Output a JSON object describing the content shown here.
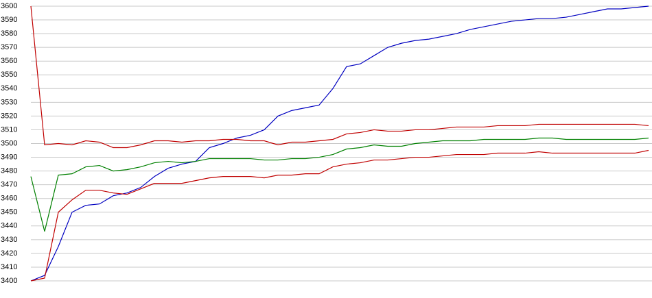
{
  "chart_data": {
    "type": "line",
    "categories": [
      null,
      null,
      null,
      null,
      null,
      null,
      null,
      null,
      null,
      null,
      null,
      null,
      null,
      null,
      null,
      null,
      null,
      null,
      null,
      null,
      null,
      null,
      null,
      null,
      null,
      null,
      null,
      null,
      null,
      null,
      null,
      null,
      null,
      null,
      null,
      null,
      null,
      null,
      null,
      null,
      null,
      null,
      null,
      null,
      null,
      null
    ],
    "series": [
      {
        "color": "#0000c0",
        "values": [
          3400,
          3404,
          3425,
          3450,
          3455,
          3456,
          3462,
          3464,
          3468,
          3476,
          3482,
          3485,
          3487,
          3497,
          3500,
          3504,
          3506,
          3510,
          3520,
          3524,
          3526,
          3528,
          3540,
          3556,
          3558,
          3564,
          3570,
          3573,
          3575,
          3576,
          3578,
          3580,
          3583,
          3585,
          3587,
          3589,
          3590,
          3591,
          3591,
          3592,
          3594,
          3596,
          3598,
          3598,
          3599,
          3600
        ]
      },
      {
        "color": "#c00000",
        "values": [
          3600,
          3499,
          3500,
          3499,
          3502,
          3501,
          3497,
          3497,
          3499,
          3502,
          3502,
          3501,
          3502,
          3502,
          3503,
          3503,
          3502,
          3502,
          3499,
          3501,
          3501,
          3502,
          3503,
          3507,
          3508,
          3510,
          3509,
          3509,
          3510,
          3510,
          3511,
          3512,
          3512,
          3512,
          3513,
          3513,
          3513,
          3514,
          3514,
          3514,
          3514,
          3514,
          3514,
          3514,
          3514,
          3513
        ]
      },
      {
        "color": "#008000",
        "values": [
          3476,
          3436,
          3477,
          3478,
          3483,
          3484,
          3480,
          3481,
          3483,
          3486,
          3487,
          3486,
          3487,
          3489,
          3489,
          3489,
          3489,
          3488,
          3488,
          3489,
          3489,
          3490,
          3492,
          3496,
          3497,
          3499,
          3498,
          3498,
          3500,
          3501,
          3502,
          3502,
          3502,
          3503,
          3503,
          3503,
          3503,
          3504,
          3504,
          3503,
          3503,
          3503,
          3503,
          3503,
          3503,
          3504
        ]
      },
      {
        "color": "#c00000",
        "values": [
          3400,
          3402,
          3450,
          3459,
          3466,
          3466,
          3464,
          3463,
          3467,
          3471,
          3471,
          3471,
          3473,
          3475,
          3476,
          3476,
          3476,
          3475,
          3477,
          3477,
          3478,
          3478,
          3483,
          3485,
          3486,
          3488,
          3488,
          3489,
          3490,
          3490,
          3491,
          3492,
          3492,
          3492,
          3493,
          3493,
          3493,
          3494,
          3493,
          3493,
          3493,
          3493,
          3493,
          3493,
          3493,
          3495
        ]
      }
    ],
    "ylim": [
      3400,
      3600
    ],
    "yticks": [
      3400,
      3410,
      3420,
      3430,
      3440,
      3450,
      3460,
      3470,
      3480,
      3490,
      3500,
      3510,
      3520,
      3530,
      3540,
      3550,
      3560,
      3570,
      3580,
      3590,
      3600
    ],
    "grid": true
  }
}
